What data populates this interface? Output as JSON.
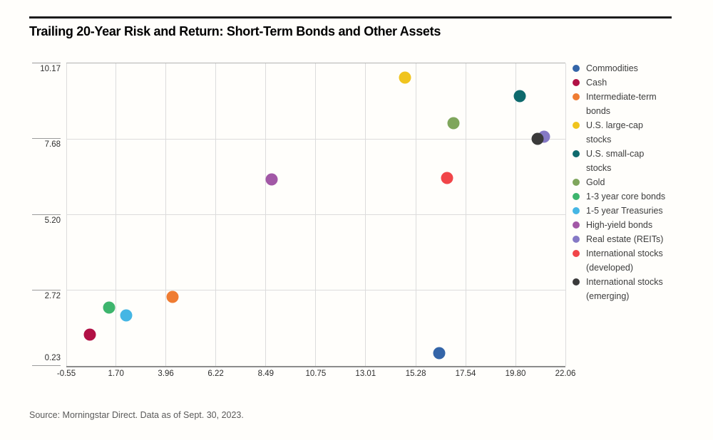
{
  "header": {
    "title": "Trailing 20-Year Risk and Return: Short-Term Bonds and Other Assets"
  },
  "source": {
    "text": "Source: Morningstar Direct. Data as of Sept. 30, 2023."
  },
  "chart_data": {
    "type": "scatter",
    "title": "Trailing 20-Year Risk and Return: Short-Term Bonds and Other Assets",
    "xlabel": "",
    "ylabel": "",
    "xlim": [
      -0.55,
      22.06
    ],
    "ylim": [
      0.23,
      10.17
    ],
    "x_ticks": [
      -0.55,
      1.7,
      3.96,
      6.22,
      8.49,
      10.75,
      13.01,
      15.28,
      17.54,
      19.8,
      22.06
    ],
    "x_tick_labels": [
      "-0.55",
      "1.70",
      "3.96",
      "6.22",
      "8.49",
      "10.75",
      "13.01",
      "15.28",
      "17.54",
      "19.80",
      "22.06"
    ],
    "y_ticks": [
      0.23,
      2.72,
      5.2,
      7.68,
      10.17
    ],
    "y_tick_labels": [
      "0.23",
      "2.72",
      "5.20",
      "7.68",
      "10.17"
    ],
    "grid": true,
    "legend_position": "right",
    "series": [
      {
        "name": "Commodities",
        "legend_label": "Commodities",
        "color": "#3465a8",
        "risk": 16.35,
        "return": 0.65
      },
      {
        "name": "Cash",
        "legend_label": "Cash",
        "color": "#b11145",
        "risk": 0.5,
        "return": 1.25
      },
      {
        "name": "Intermediate-term bonds",
        "legend_label": "Intermediate-term\nbonds",
        "color": "#ef7c32",
        "risk": 4.25,
        "return": 2.5
      },
      {
        "name": "U.S. large-cap stocks",
        "legend_label": "U.S. large-cap\nstocks",
        "color": "#f0c41e",
        "risk": 14.8,
        "return": 9.7
      },
      {
        "name": "U.S. small-cap stocks",
        "legend_label": "U.S. small-cap\nstocks",
        "color": "#0e6a6d",
        "risk": 20.0,
        "return": 9.1
      },
      {
        "name": "Gold",
        "legend_label": "Gold",
        "color": "#7fa65c",
        "risk": 17.0,
        "return": 8.2
      },
      {
        "name": "1-3 year core bonds",
        "legend_label": "1-3 year core bonds",
        "color": "#3db56d",
        "risk": 1.4,
        "return": 2.15
      },
      {
        "name": "1-5 year Treasuries",
        "legend_label": "1-5 year Treasuries",
        "color": "#45b6e4",
        "risk": 2.15,
        "return": 1.9
      },
      {
        "name": "High-yield bonds",
        "legend_label": "High-yield bonds",
        "color": "#a258a6",
        "risk": 8.75,
        "return": 6.35
      },
      {
        "name": "Real estate (REITs)",
        "legend_label": "Real estate (REITs)",
        "color": "#8579c5",
        "risk": 21.1,
        "return": 7.75
      },
      {
        "name": "International stocks (developed)",
        "legend_label": "International stocks\n(developed)",
        "color": "#f14549",
        "risk": 16.7,
        "return": 6.4
      },
      {
        "name": "International stocks (emerging)",
        "legend_label": "International stocks\n(emerging)",
        "color": "#3a3a3a",
        "risk": 20.8,
        "return": 7.7
      }
    ]
  }
}
